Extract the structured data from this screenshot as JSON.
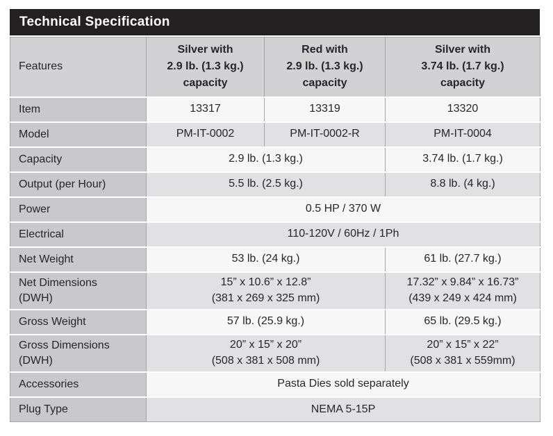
{
  "title": "Technical Specification",
  "colors": {
    "title_bar_bg": "#232021",
    "title_text": "#ffffff",
    "header_bg": "#d2d2d4",
    "feature_column_bg": "#c9c9cb",
    "row_light_bg": "#f7f7f8",
    "row_dark_bg": "#e1e1e3",
    "grid_line": "#a4a5a7",
    "text": "#282526"
  },
  "table": {
    "features_header": "Features",
    "column_headers": [
      {
        "key": "silver-2-9-capacity",
        "lines": [
          "Silver with",
          "2.9 lb. (1.3 kg.)",
          "capacity"
        ]
      },
      {
        "key": "red-2-9-capacity",
        "lines": [
          "Red with",
          "2.9 lb. (1.3 kg.)",
          "capacity"
        ]
      },
      {
        "key": "silver-3-74-capacity",
        "lines": [
          "Silver with",
          "3.74 lb. (1.7 kg.)",
          "capacity"
        ]
      }
    ],
    "rows": [
      {
        "key": "item",
        "label_lines": [
          "Item"
        ],
        "tall": false,
        "cells": [
          {
            "span": 1,
            "lines": [
              "13317"
            ]
          },
          {
            "span": 1,
            "lines": [
              "13319"
            ]
          },
          {
            "span": 1,
            "lines": [
              "13320"
            ]
          }
        ]
      },
      {
        "key": "model",
        "label_lines": [
          "Model"
        ],
        "tall": false,
        "cells": [
          {
            "span": 1,
            "lines": [
              "PM-IT-0002"
            ]
          },
          {
            "span": 1,
            "lines": [
              "PM-IT-0002-R"
            ]
          },
          {
            "span": 1,
            "lines": [
              "PM-IT-0004"
            ]
          }
        ]
      },
      {
        "key": "capacity",
        "label_lines": [
          "Capacity"
        ],
        "tall": false,
        "cells": [
          {
            "span": 2,
            "lines": [
              "2.9 lb. (1.3 kg.)"
            ]
          },
          {
            "span": 1,
            "lines": [
              "3.74 lb. (1.7 kg.)"
            ]
          }
        ]
      },
      {
        "key": "output-per-hour",
        "label_lines": [
          "Output (per Hour)"
        ],
        "tall": false,
        "cells": [
          {
            "span": 2,
            "lines": [
              "5.5 lb. (2.5 kg.)"
            ]
          },
          {
            "span": 1,
            "lines": [
              "8.8 lb. (4 kg.)"
            ]
          }
        ]
      },
      {
        "key": "power",
        "label_lines": [
          "Power"
        ],
        "tall": false,
        "cells": [
          {
            "span": 3,
            "lines": [
              "0.5 HP / 370 W"
            ]
          }
        ]
      },
      {
        "key": "electrical",
        "label_lines": [
          "Electrical"
        ],
        "tall": false,
        "cells": [
          {
            "span": 3,
            "lines": [
              "110-120V / 60Hz / 1Ph"
            ]
          }
        ]
      },
      {
        "key": "net-weight",
        "label_lines": [
          "Net Weight"
        ],
        "tall": false,
        "cells": [
          {
            "span": 2,
            "lines": [
              "53 lb. (24 kg.)"
            ]
          },
          {
            "span": 1,
            "lines": [
              "61 lb. (27.7 kg.)"
            ]
          }
        ]
      },
      {
        "key": "net-dimensions-dwh",
        "label_lines": [
          "Net Dimensions",
          "(DWH)"
        ],
        "tall": true,
        "cells": [
          {
            "span": 2,
            "lines": [
              "15” x 10.6” x 12.8”",
              "(381 x 269 x 325 mm)"
            ]
          },
          {
            "span": 1,
            "lines": [
              "17.32” x 9.84” x 16.73”",
              "(439 x 249 x 424 mm)"
            ]
          }
        ]
      },
      {
        "key": "gross-weight",
        "label_lines": [
          "Gross Weight"
        ],
        "tall": false,
        "cells": [
          {
            "span": 2,
            "lines": [
              "57 lb. (25.9 kg.)"
            ]
          },
          {
            "span": 1,
            "lines": [
              "65 lb. (29.5 kg.)"
            ]
          }
        ]
      },
      {
        "key": "gross-dimensions-dwh",
        "label_lines": [
          "Gross  Dimensions",
          "(DWH)"
        ],
        "tall": true,
        "cells": [
          {
            "span": 2,
            "lines": [
              "20” x 15” x 20”",
              "(508 x 381 x 508 mm)"
            ]
          },
          {
            "span": 1,
            "lines": [
              "20” x 15” x 22”",
              "(508 x 381 x 559mm)"
            ]
          }
        ]
      },
      {
        "key": "accessories",
        "label_lines": [
          "Accessories"
        ],
        "tall": false,
        "cells": [
          {
            "span": 3,
            "lines": [
              "Pasta Dies sold separately"
            ]
          }
        ]
      },
      {
        "key": "plug-type",
        "label_lines": [
          "Plug Type"
        ],
        "tall": false,
        "cells": [
          {
            "span": 3,
            "lines": [
              "NEMA 5-15P"
            ]
          }
        ]
      }
    ]
  }
}
